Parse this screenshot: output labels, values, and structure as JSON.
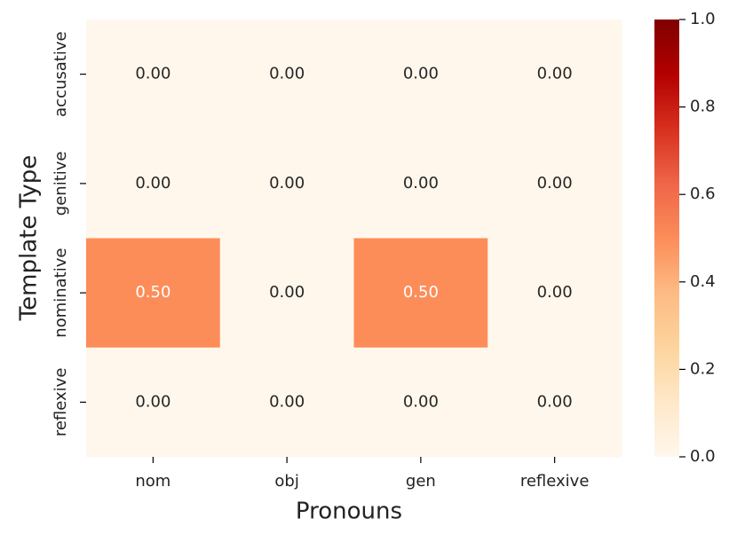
{
  "chart_data": {
    "type": "heatmap",
    "x_label": "Pronouns",
    "y_label": "Template Type",
    "x_categories": [
      "nom",
      "obj",
      "gen",
      "reflexive"
    ],
    "y_categories": [
      "accusative",
      "genitive",
      "nominative",
      "reflexive"
    ],
    "values": [
      [
        0,
        0,
        0,
        0
      ],
      [
        0,
        0,
        0,
        0
      ],
      [
        0.5,
        0,
        0.5,
        0
      ],
      [
        0,
        0,
        0,
        0
      ]
    ],
    "value_labels": [
      [
        "0.00",
        "0.00",
        "0.00",
        "0.00"
      ],
      [
        "0.00",
        "0.00",
        "0.00",
        "0.00"
      ],
      [
        "0.50",
        "0.00",
        "0.50",
        "0.00"
      ],
      [
        "0.00",
        "0.00",
        "0.00",
        "0.00"
      ]
    ],
    "colormap": "OrRd",
    "clim": [
      0,
      1
    ],
    "cticks": [
      {
        "value": 0,
        "label": "0.0"
      },
      0.2,
      0.4,
      0.6,
      0.8,
      {
        "value": 1,
        "label": "1.0"
      }
    ]
  }
}
